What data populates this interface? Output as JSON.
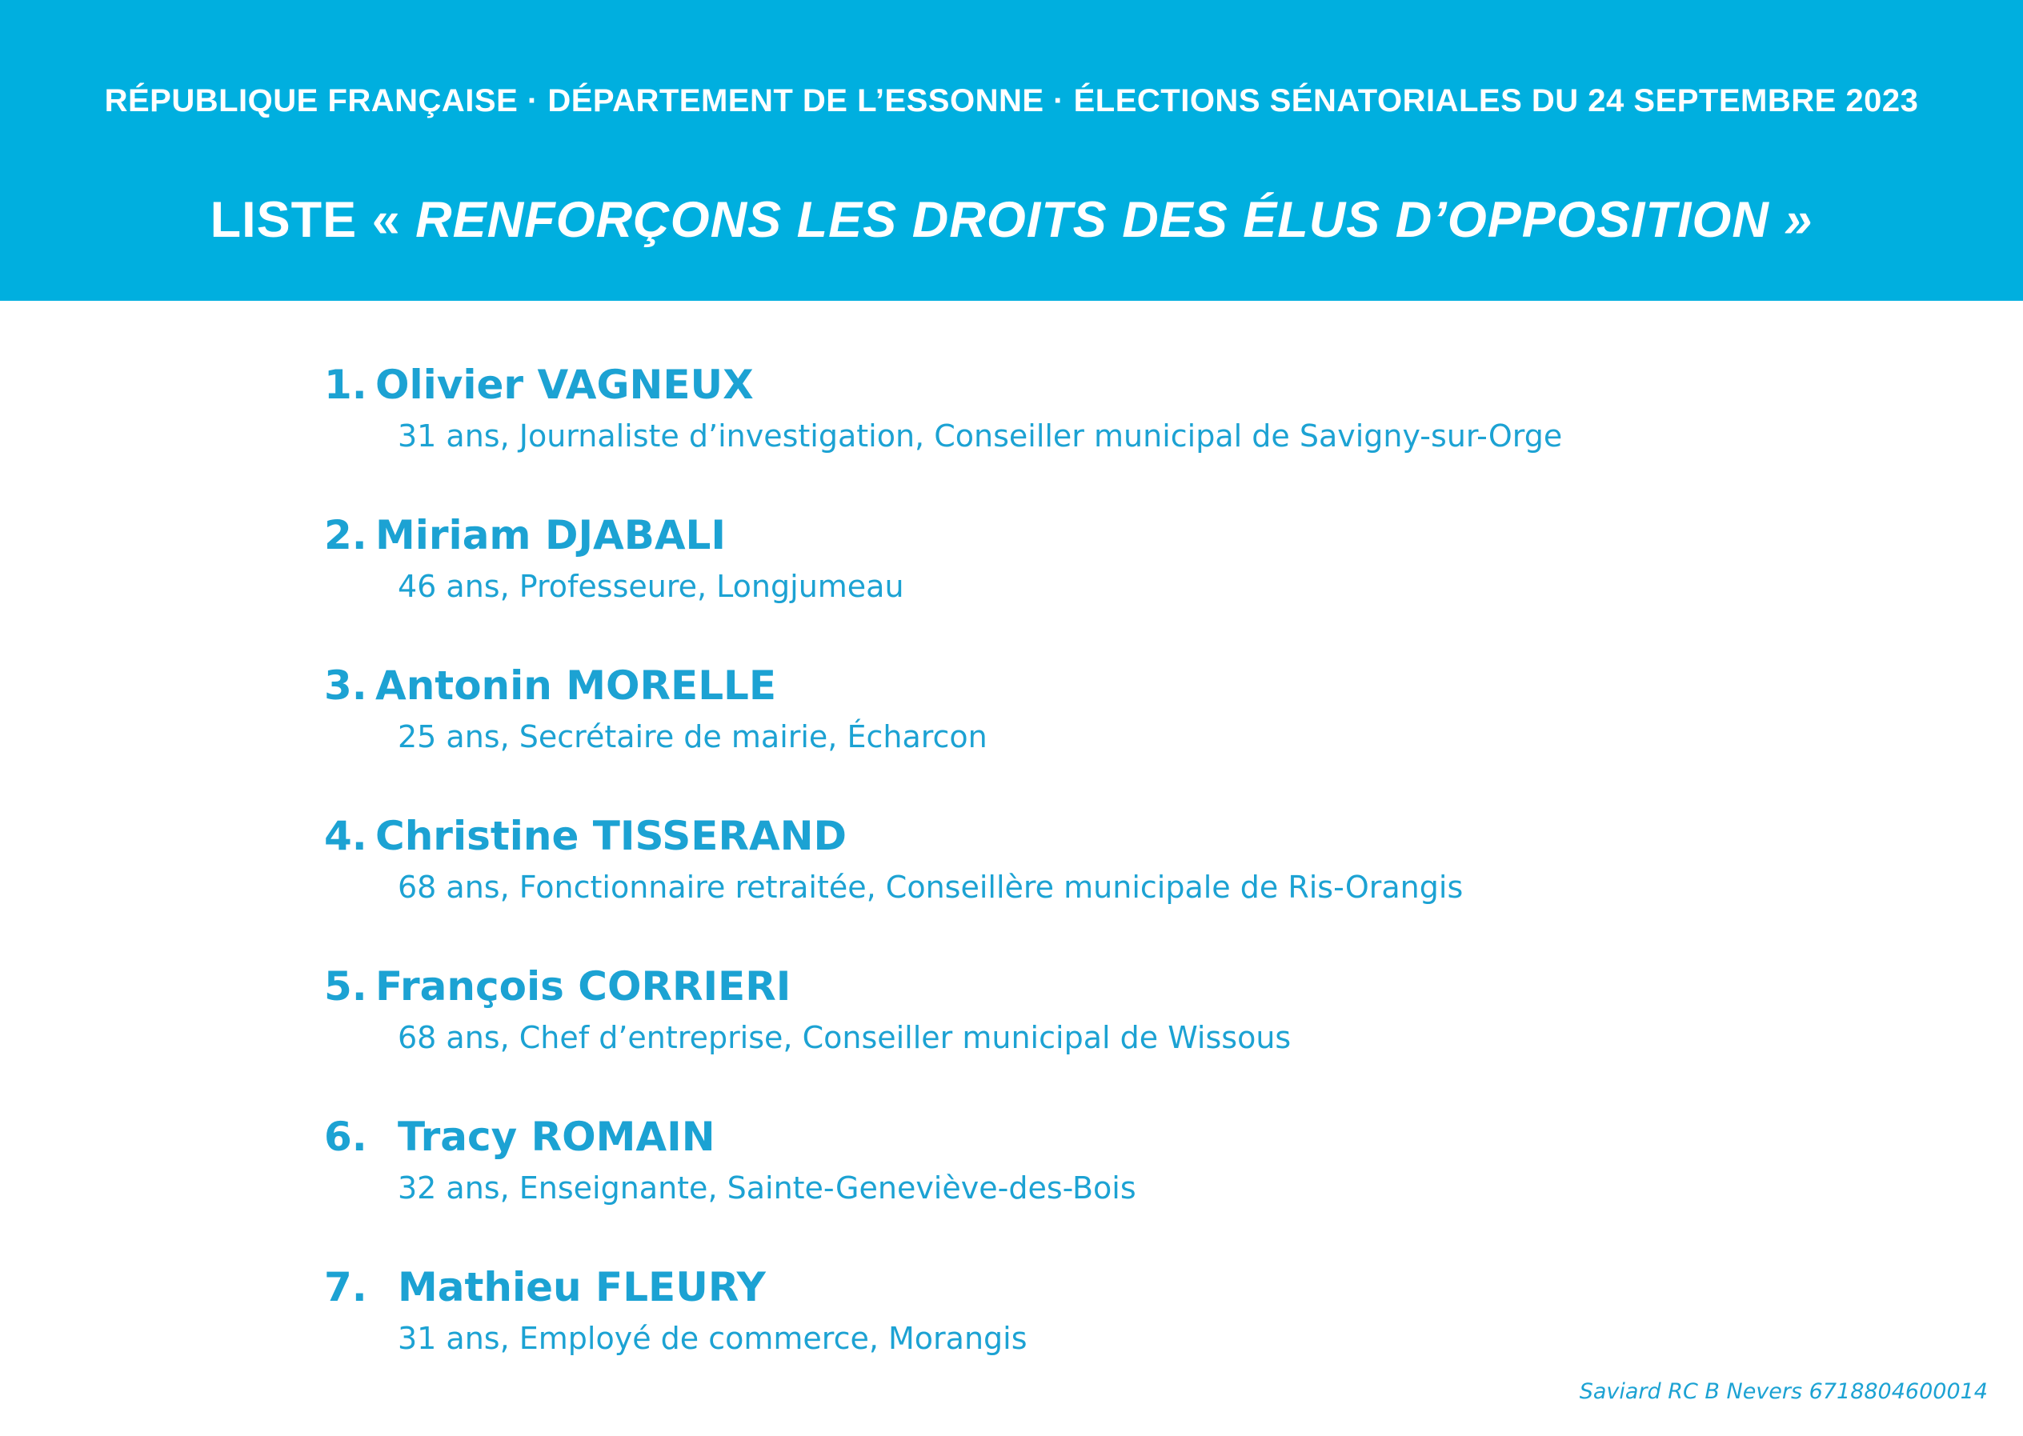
{
  "header": {
    "band_line": "RÉPUBLIQUE FRANÇAISE · DÉPARTEMENT DE L’ESSONNE · ÉLECTIONS SÉNATORIALES DU 24 SEPTEMBRE 2023",
    "title": {
      "prefix": "LISTE « ",
      "emphasis": "RENFORÇONS LES DROITS DES ÉLUS D’OPPOSITION",
      "suffix": " »"
    }
  },
  "candidates": [
    {
      "number": "1.",
      "name": "Olivier VAGNEUX",
      "details": "31 ans, Journaliste d’investigation, Conseiller municipal de Savigny-sur-Orge"
    },
    {
      "number": "2.",
      "name": "Miriam DJABALI",
      "details": "46 ans, Professeure, Longjumeau"
    },
    {
      "number": "3.",
      "name": "Antonin MORELLE",
      "details": "25 ans, Secrétaire de mairie, Écharcon"
    },
    {
      "number": "4.",
      "name": "Christine TISSERAND",
      "details": "68 ans, Fonctionnaire retraitée, Conseillère municipale de Ris-Orangis"
    },
    {
      "number": "5.",
      "name": "François CORRIERI",
      "details": "68 ans, Chef d’entreprise, Conseiller municipal de Wissous"
    },
    {
      "number": "6.",
      "name": "Tracy ROMAIN",
      "details": "32 ans, Enseignante, Sainte-Geneviève-des-Bois"
    },
    {
      "number": "7.",
      "name": "Mathieu FLEURY",
      "details": "31 ans, Employé de commerce, Morangis"
    }
  ],
  "footer": {
    "imprint": "Saviard RC B Nevers 6718804600014"
  },
  "colors": {
    "band_background": "#00AFDF",
    "band_text": "#FFFFFF",
    "list_text": "#1CA2D3",
    "page_background": "#FFFFFF"
  }
}
